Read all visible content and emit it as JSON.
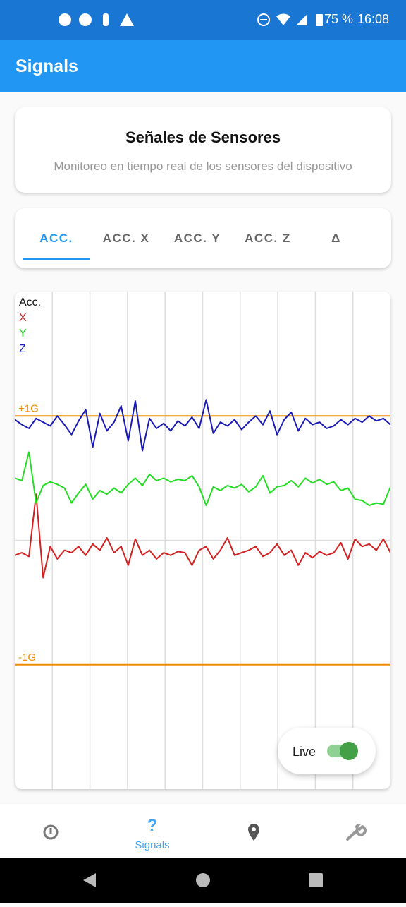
{
  "status_bar": {
    "battery": "75 %",
    "time": "16:08"
  },
  "app_bar": {
    "title": "Signals"
  },
  "header_card": {
    "title": "Señales de Sensores",
    "subtitle": "Monitoreo en tiempo real de los sensores del dispositivo"
  },
  "tabs": [
    "ACC.",
    "ACC. X",
    "ACC. Y",
    "ACC. Z",
    "Δ"
  ],
  "live_toggle": {
    "label": "Live"
  },
  "bottom_nav": {
    "selected_label": "Signals"
  },
  "chart_data": {
    "type": "line",
    "legend_title": "Acc.",
    "grid": true,
    "ylim": [
      -2,
      2
    ],
    "yticks": [
      {
        "value": 1,
        "label": "+1G"
      },
      {
        "value": -1,
        "label": "-1G"
      }
    ],
    "tick_color": "#f08c00",
    "series": [
      {
        "name": "X",
        "color": "#d32020",
        "values": [
          -0.12,
          -0.1,
          -0.13,
          0.37,
          -0.3,
          -0.05,
          -0.15,
          -0.08,
          -0.1,
          -0.05,
          -0.12,
          -0.03,
          -0.08,
          0.02,
          -0.1,
          -0.05,
          -0.2,
          0.01,
          -0.12,
          -0.08,
          -0.15,
          -0.1,
          -0.12,
          -0.09,
          -0.1,
          -0.2,
          -0.08,
          -0.05,
          -0.15,
          -0.08,
          0.02,
          -0.12,
          -0.1,
          -0.08,
          -0.05,
          -0.13,
          -0.1,
          -0.03,
          -0.12,
          -0.08,
          -0.2,
          -0.1,
          -0.14,
          -0.09,
          -0.12,
          -0.1,
          -0.02,
          -0.15,
          0.01,
          -0.05,
          -0.03,
          -0.08,
          0.01,
          -0.1
        ]
      },
      {
        "name": "Y",
        "color": "#22dd22",
        "values": [
          0.5,
          0.48,
          0.71,
          0.3,
          0.44,
          0.47,
          0.45,
          0.42,
          0.3,
          0.38,
          0.45,
          0.33,
          0.4,
          0.37,
          0.42,
          0.38,
          0.45,
          0.5,
          0.44,
          0.53,
          0.48,
          0.5,
          0.47,
          0.49,
          0.48,
          0.52,
          0.43,
          0.28,
          0.43,
          0.4,
          0.44,
          0.42,
          0.45,
          0.39,
          0.43,
          0.52,
          0.38,
          0.43,
          0.44,
          0.48,
          0.43,
          0.5,
          0.46,
          0.49,
          0.45,
          0.47,
          0.4,
          0.42,
          0.33,
          0.32,
          0.28,
          0.3,
          0.29,
          0.43
        ]
      },
      {
        "name": "Z",
        "color": "#1a1ab8",
        "values": [
          0.97,
          0.93,
          0.9,
          0.98,
          0.95,
          0.92,
          1.0,
          0.93,
          0.85,
          0.96,
          1.05,
          0.75,
          1.02,
          0.88,
          0.95,
          1.08,
          0.8,
          1.12,
          0.72,
          0.98,
          0.9,
          0.94,
          0.88,
          0.96,
          0.92,
          0.99,
          0.9,
          1.13,
          0.86,
          0.95,
          0.92,
          0.97,
          0.89,
          0.95,
          1.0,
          0.93,
          1.04,
          0.85,
          0.97,
          1.03,
          0.88,
          0.98,
          0.93,
          0.95,
          0.9,
          0.92,
          0.97,
          0.93,
          0.98,
          0.95,
          1.0,
          0.96,
          0.98,
          0.93
        ]
      }
    ]
  }
}
